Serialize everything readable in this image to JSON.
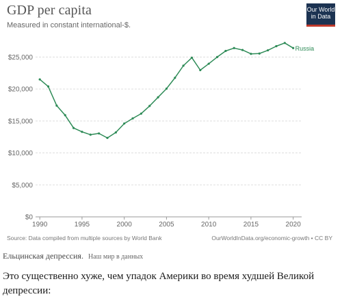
{
  "chart_data": {
    "type": "line",
    "title": "GDP per capita",
    "subtitle": "Measured in constant international-$.",
    "xlabel": "",
    "ylabel": "",
    "xlim": [
      1989.5,
      2021
    ],
    "ylim": [
      0,
      27500
    ],
    "x_ticks": [
      1990,
      1995,
      2000,
      2005,
      2010,
      2015,
      2020
    ],
    "y_ticks": [
      0,
      5000,
      10000,
      15000,
      20000,
      25000
    ],
    "y_tick_labels": [
      "$0",
      "$5,000",
      "$10,000",
      "$15,000",
      "$20,000",
      "$25,000"
    ],
    "grid": "horizontal dashed",
    "color": "#2e8b57",
    "series": [
      {
        "name": "Russia",
        "x": [
          1990,
          1991,
          1992,
          1993,
          1994,
          1995,
          1996,
          1997,
          1998,
          1999,
          2000,
          2001,
          2002,
          2003,
          2004,
          2005,
          2006,
          2007,
          2008,
          2009,
          2010,
          2011,
          2012,
          2013,
          2014,
          2015,
          2016,
          2017,
          2018,
          2019,
          2020
        ],
        "values": [
          21500,
          20400,
          17400,
          15900,
          13900,
          13300,
          12850,
          13050,
          12350,
          13200,
          14600,
          15400,
          16150,
          17350,
          18700,
          20050,
          21750,
          23650,
          24900,
          22950,
          23950,
          25000,
          25950,
          26400,
          26100,
          25500,
          25550,
          26050,
          26700,
          27200,
          26400
        ]
      }
    ]
  },
  "source": {
    "left": "Source: Data compiled from multiple sources by World Bank",
    "right": "OurWorldInData.org/economic-growth • CC BY"
  },
  "logo": {
    "line1": "Our World",
    "line2": "in Data"
  },
  "caption": {
    "main": "Ельцинская депрессия.",
    "credit": "Наш мир в данных"
  },
  "paragraph": "Это существенно хуже, чем упадок Америки во время худшей Великой депрессии:"
}
